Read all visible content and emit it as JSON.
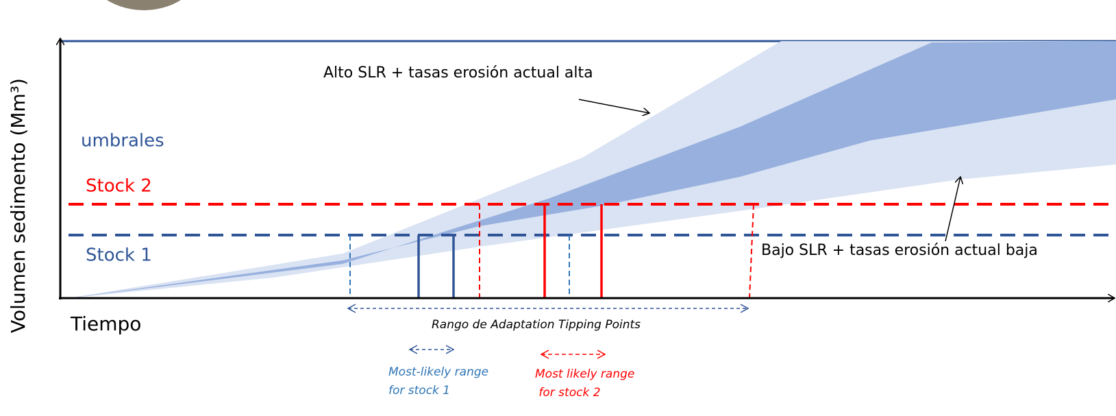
{
  "y_axis_label": "Volumen sedimento (Mm³)",
  "x_axis_label": "Tiempo",
  "annotations": {
    "high_scenario": "Alto SLR + tasas erosión actual alta",
    "low_scenario": "Bajo SLR + tasas erosión actual baja",
    "thresholds": "umbrales",
    "stock_2": "Stock 2",
    "stock_1": "Stock 1",
    "atp_range": "Rango de Adaptation Tipping Points",
    "stock_1_range": [
      "Most-likely range",
      "for stock 1"
    ],
    "stock_2_range": [
      "Most likely range",
      " for stock 2"
    ]
  }
}
